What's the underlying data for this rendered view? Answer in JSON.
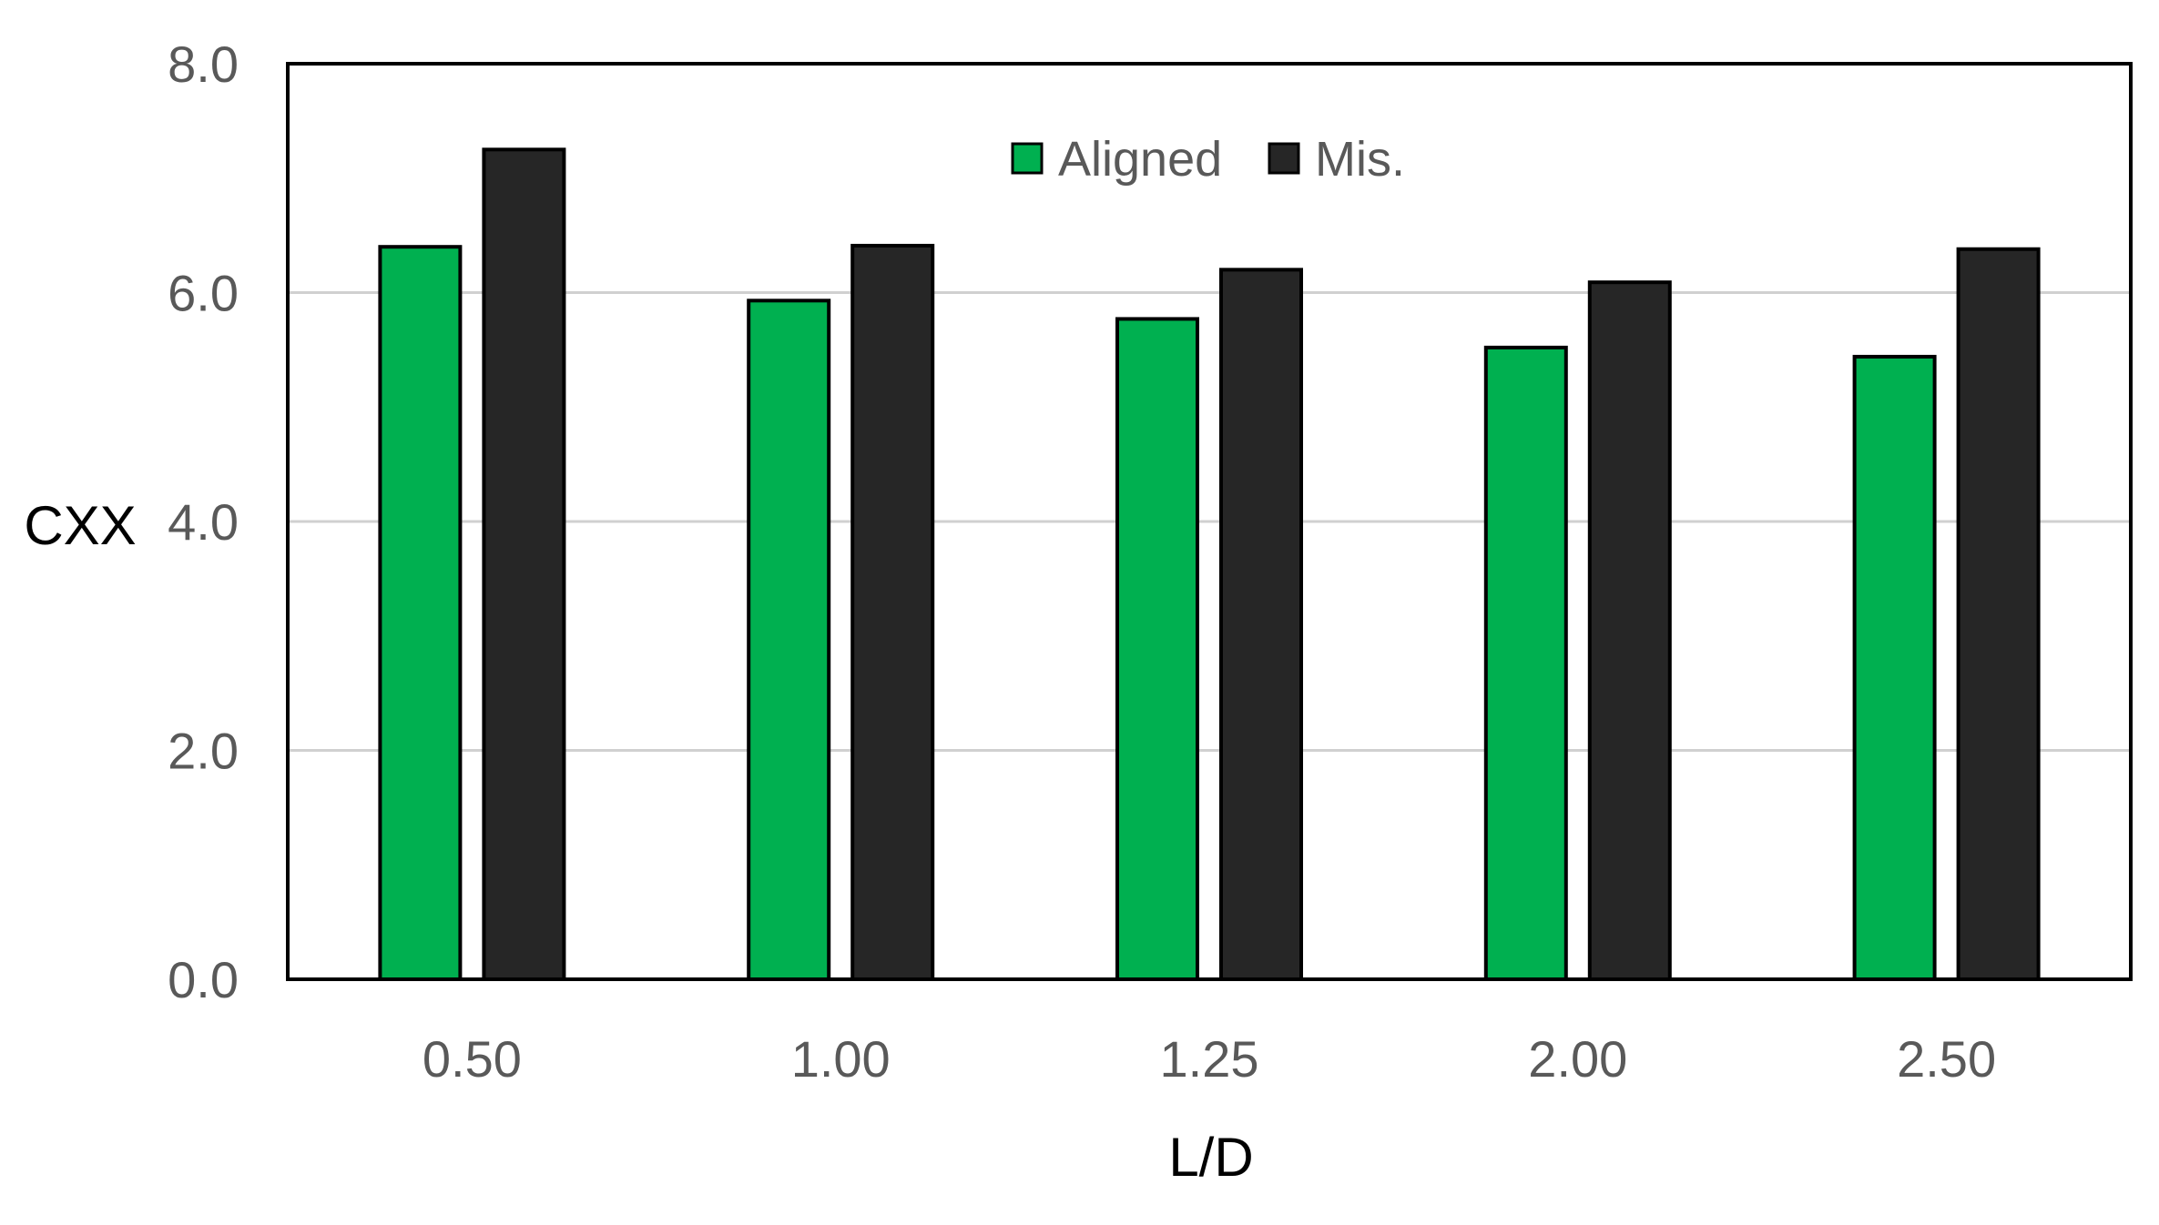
{
  "chart_data": {
    "type": "bar",
    "title": "",
    "xlabel": "L/D",
    "ylabel": "CXX",
    "categories": [
      "0.50",
      "1.00",
      "1.25",
      "2.00",
      "2.50"
    ],
    "series": [
      {
        "name": "Aligned",
        "color": "#00b050",
        "values": [
          6.4,
          5.93,
          5.77,
          5.52,
          5.44
        ]
      },
      {
        "name": "Mis.",
        "color": "#262626",
        "values": [
          7.25,
          6.41,
          6.2,
          6.09,
          6.38
        ]
      }
    ],
    "ylim": [
      0,
      8
    ],
    "yticks": [
      "0.0",
      "2.0",
      "4.0",
      "6.0",
      "8.0"
    ],
    "grid": true,
    "legend_position": "top-center"
  }
}
